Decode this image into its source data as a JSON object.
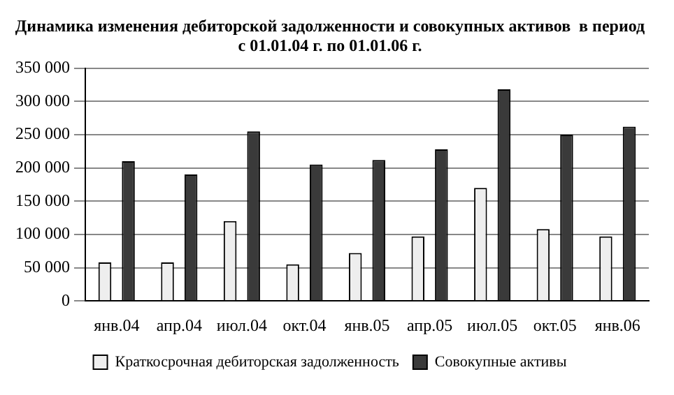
{
  "chart_data": {
    "type": "bar",
    "title": "Динамика изменения дебиторской задолженности и совокупных активов  в период с 01.01.04 г. по 01.01.06 г.",
    "categories": [
      "янв.04",
      "апр.04",
      "июл.04",
      "окт.04",
      "янв.05",
      "апр.05",
      "июл.05",
      "окт.05",
      "янв.06"
    ],
    "series": [
      {
        "name": "Краткосрочная дебиторская задолженность",
        "color": "#eeeeee",
        "values": [
          58000,
          58000,
          120000,
          55000,
          72000,
          97000,
          170000,
          108000,
          97000
        ]
      },
      {
        "name": "Совокупные активы",
        "color": "#3a3a3a",
        "values": [
          210000,
          190000,
          255000,
          205000,
          212000,
          228000,
          318000,
          250000,
          262000
        ]
      }
    ],
    "ylim": [
      0,
      350000
    ],
    "yticks": [
      {
        "value": 0,
        "label": "0"
      },
      {
        "value": 50000,
        "label": "50 000"
      },
      {
        "value": 100000,
        "label": "100 000"
      },
      {
        "value": 150000,
        "label": "150 000"
      },
      {
        "value": 200000,
        "label": "200 000"
      },
      {
        "value": 250000,
        "label": "250 000"
      },
      {
        "value": 300000,
        "label": "300 000"
      },
      {
        "value": 350000,
        "label": "350 000"
      }
    ],
    "grid": "y",
    "legend": "bottom"
  }
}
